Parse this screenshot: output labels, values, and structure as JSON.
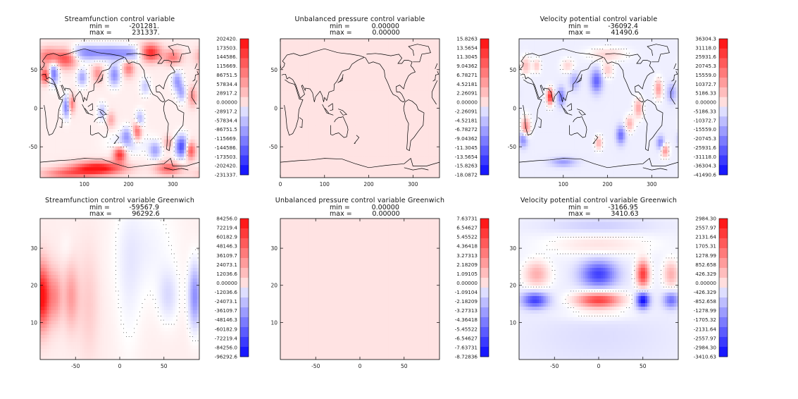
{
  "chart_data": [
    {
      "type": "heatmap",
      "title": "Streamfunction control variable",
      "stats": {
        "min_label": "min =",
        "min_value": "-201281.",
        "max_label": "max =",
        "max_value": "231337."
      },
      "x_ticks": [
        "100",
        "200",
        "300"
      ],
      "x_tick_values": [
        100,
        200,
        300
      ],
      "y_ticks": [
        "50",
        "0",
        "-50"
      ],
      "y_tick_values": [
        50,
        0,
        -50
      ],
      "xlim": [
        0,
        360
      ],
      "ylim": [
        -90,
        90
      ],
      "map": "world",
      "colorbar_labels": [
        "202420.",
        "173503.",
        "144586.",
        "115669.",
        "86751.5",
        "57834.4",
        "28917.2",
        "0.00000",
        "-28917.2",
        "-57834.4",
        "-86751.5",
        "-115669.",
        "-144586.",
        "-173503.",
        "-202420.",
        "-231337."
      ],
      "colorbar_top": 202420,
      "colorbar_min": -231337,
      "blobs": [
        {
          "x": 20,
          "y": 67,
          "a": 0.55,
          "sx": 18,
          "sy": 8
        },
        {
          "x": 60,
          "y": 65,
          "a": 0.7,
          "sx": 16,
          "sy": 9
        },
        {
          "x": 105,
          "y": 72,
          "a": -0.55,
          "sx": 30,
          "sy": 7
        },
        {
          "x": 165,
          "y": 72,
          "a": -0.45,
          "sx": 25,
          "sy": 7
        },
        {
          "x": 205,
          "y": 70,
          "a": -0.4,
          "sx": 18,
          "sy": 7
        },
        {
          "x": 250,
          "y": 72,
          "a": 0.85,
          "sx": 16,
          "sy": 8
        },
        {
          "x": 300,
          "y": 66,
          "a": 0.5,
          "sx": 14,
          "sy": 7
        },
        {
          "x": 12,
          "y": 42,
          "a": 0.8,
          "sx": 8,
          "sy": 7
        },
        {
          "x": 30,
          "y": 45,
          "a": -0.7,
          "sx": 8,
          "sy": 10
        },
        {
          "x": 95,
          "y": 40,
          "a": -0.45,
          "sx": 8,
          "sy": 8
        },
        {
          "x": 130,
          "y": 45,
          "a": 0.4,
          "sx": 8,
          "sy": 8
        },
        {
          "x": 168,
          "y": 43,
          "a": -0.55,
          "sx": 9,
          "sy": 10
        },
        {
          "x": 200,
          "y": 52,
          "a": 0.5,
          "sx": 9,
          "sy": 8
        },
        {
          "x": 238,
          "y": 28,
          "a": -0.3,
          "sx": 8,
          "sy": 8
        },
        {
          "x": 310,
          "y": 35,
          "a": -0.5,
          "sx": 8,
          "sy": 9
        },
        {
          "x": 320,
          "y": 20,
          "a": -0.4,
          "sx": 7,
          "sy": 8
        },
        {
          "x": 345,
          "y": 15,
          "a": 0.4,
          "sx": 7,
          "sy": 9
        },
        {
          "x": 60,
          "y": 2,
          "a": -0.7,
          "sx": 6,
          "sy": 10
        },
        {
          "x": 70,
          "y": 5,
          "a": 0.6,
          "sx": 6,
          "sy": 8
        },
        {
          "x": 140,
          "y": -5,
          "a": -0.35,
          "sx": 7,
          "sy": 8
        },
        {
          "x": 160,
          "y": -15,
          "a": 0.3,
          "sx": 7,
          "sy": 7
        },
        {
          "x": 220,
          "y": -30,
          "a": 0.65,
          "sx": 7,
          "sy": 9
        },
        {
          "x": 225,
          "y": -15,
          "a": -0.45,
          "sx": 7,
          "sy": 8
        },
        {
          "x": 195,
          "y": -35,
          "a": -0.35,
          "sx": 8,
          "sy": 8
        },
        {
          "x": 180,
          "y": -60,
          "a": 0.85,
          "sx": 10,
          "sy": 7
        },
        {
          "x": 130,
          "y": -78,
          "a": 1.0,
          "sx": 40,
          "sy": 6
        },
        {
          "x": 60,
          "y": -85,
          "a": 0.5,
          "sx": 40,
          "sy": 5
        },
        {
          "x": 290,
          "y": -78,
          "a": 0.6,
          "sx": 20,
          "sy": 6
        },
        {
          "x": 260,
          "y": -55,
          "a": -0.45,
          "sx": 10,
          "sy": 8
        },
        {
          "x": 320,
          "y": -50,
          "a": -0.85,
          "sx": 10,
          "sy": 10
        },
        {
          "x": 340,
          "y": -55,
          "a": 0.7,
          "sx": 8,
          "sy": 8
        },
        {
          "x": 290,
          "y": -45,
          "a": 0.3,
          "sx": 8,
          "sy": 6
        },
        {
          "x": 200,
          "y": -45,
          "a": -0.25,
          "sx": 30,
          "sy": 10
        }
      ],
      "base": 0.07
    },
    {
      "type": "heatmap",
      "title": "Unbalanced pressure control variable",
      "stats": {
        "min_label": "min =",
        "min_value": "0.00000",
        "max_label": "max =",
        "max_value": "0.00000"
      },
      "x_ticks": [
        "0",
        "100",
        "200",
        "300"
      ],
      "x_tick_values": [
        0,
        100,
        200,
        300
      ],
      "y_ticks": [
        "50",
        "0",
        "-50"
      ],
      "y_tick_values": [
        50,
        0,
        -50
      ],
      "xlim": [
        0,
        360
      ],
      "ylim": [
        -90,
        90
      ],
      "map": "world",
      "colorbar_labels": [
        "15.8263",
        "13.5654",
        "11.3045",
        "9.04362",
        "6.78271",
        "4.52181",
        "2.26091",
        "0.00000",
        "-2.26091",
        "-4.52181",
        "-6.78272",
        "-9.04362",
        "-11.3045",
        "-13.5654",
        "-15.8263",
        "-18.0872"
      ],
      "colorbar_top": 15.8263,
      "colorbar_min": -18.0872,
      "blobs": [],
      "base": 0.12
    },
    {
      "type": "heatmap",
      "title": "Velocity potential control variable",
      "stats": {
        "min_label": "min =",
        "min_value": "-36092.4",
        "max_label": "max =",
        "max_value": "41490.6"
      },
      "x_ticks": [
        "100",
        "200",
        "300"
      ],
      "x_tick_values": [
        100,
        200,
        300
      ],
      "y_ticks": [
        "50",
        "0",
        "-50"
      ],
      "y_tick_values": [
        50,
        0,
        -50
      ],
      "xlim": [
        0,
        360
      ],
      "ylim": [
        -90,
        90
      ],
      "map": "world",
      "colorbar_labels": [
        "36304.3",
        "31118.0",
        "25931.6",
        "20745.3",
        "15559.0",
        "10372.7",
        "5186.33",
        "0.00000",
        "-5186.33",
        "-10372.7",
        "-15559.0",
        "-20745.3",
        "-25931.6",
        "-31118.0",
        "-36304.3",
        "-41490.6"
      ],
      "colorbar_top": 36304.3,
      "colorbar_min": -41490.6,
      "blobs": [
        {
          "x": 15,
          "y": 55,
          "a": 0.35,
          "sx": 8,
          "sy": 8
        },
        {
          "x": 40,
          "y": 55,
          "a": 0.3,
          "sx": 6,
          "sy": 6
        },
        {
          "x": 110,
          "y": 55,
          "a": 0.25,
          "sx": 10,
          "sy": 6
        },
        {
          "x": 175,
          "y": 35,
          "a": -0.6,
          "sx": 9,
          "sy": 10
        },
        {
          "x": 200,
          "y": 50,
          "a": 0.3,
          "sx": 9,
          "sy": 7
        },
        {
          "x": 125,
          "y": 35,
          "a": -0.3,
          "sx": 8,
          "sy": 8
        },
        {
          "x": 70,
          "y": 15,
          "a": 1.0,
          "sx": 5,
          "sy": 7
        },
        {
          "x": 95,
          "y": 15,
          "a": -0.5,
          "sx": 6,
          "sy": 8
        },
        {
          "x": 15,
          "y": -25,
          "a": 0.6,
          "sx": 7,
          "sy": 9
        },
        {
          "x": 10,
          "y": -40,
          "a": -0.5,
          "sx": 7,
          "sy": 7
        },
        {
          "x": 230,
          "y": -35,
          "a": -0.55,
          "sx": 7,
          "sy": 8
        },
        {
          "x": 250,
          "y": -20,
          "a": 0.4,
          "sx": 7,
          "sy": 7
        },
        {
          "x": 270,
          "y": 0,
          "a": 0.45,
          "sx": 7,
          "sy": 9
        },
        {
          "x": 315,
          "y": 25,
          "a": 0.5,
          "sx": 6,
          "sy": 9
        },
        {
          "x": 345,
          "y": 20,
          "a": -0.35,
          "sx": 7,
          "sy": 8
        },
        {
          "x": 330,
          "y": -55,
          "a": 0.55,
          "sx": 6,
          "sy": 6
        },
        {
          "x": 320,
          "y": -45,
          "a": -0.45,
          "sx": 6,
          "sy": 6
        },
        {
          "x": 180,
          "y": -45,
          "a": 0.4,
          "sx": 6,
          "sy": 6
        },
        {
          "x": 100,
          "y": -70,
          "a": -0.35,
          "sx": 20,
          "sy": 4
        },
        {
          "x": 200,
          "y": 70,
          "a": 0.25,
          "sx": 30,
          "sy": 6
        }
      ],
      "base": -0.07
    },
    {
      "type": "heatmap",
      "title": "Streamfunction control variable Greenwich",
      "stats": {
        "min_label": "min =",
        "min_value": "-59567.9",
        "max_label": "max =",
        "max_value": "96292.6"
      },
      "x_ticks": [
        "-50",
        "0",
        "50"
      ],
      "x_tick_values": [
        -50,
        0,
        50
      ],
      "y_ticks": [
        "30",
        "20",
        "10"
      ],
      "y_tick_values": [
        30,
        20,
        10
      ],
      "xlim": [
        -90,
        90
      ],
      "ylim": [
        0,
        38
      ],
      "map": "none",
      "colorbar_labels": [
        "84256.0",
        "72219.4",
        "60182.9",
        "48146.3",
        "36109.7",
        "24073.1",
        "12036.6",
        "0.00000",
        "-12036.6",
        "-24073.1",
        "-36109.7",
        "-48146.3",
        "-60182.9",
        "-72219.4",
        "-84256.0",
        "-96292.6"
      ],
      "colorbar_top": 84256.0,
      "colorbar_min": -96292.6,
      "blobs": [
        {
          "x": -88,
          "y": 17,
          "a": 1.0,
          "sx": 7,
          "sy": 6
        },
        {
          "x": -72,
          "y": 17,
          "a": 0.35,
          "sx": 5,
          "sy": 5
        },
        {
          "x": -55,
          "y": 17,
          "a": 0.35,
          "sx": 6,
          "sy": 6
        },
        {
          "x": -35,
          "y": 15,
          "a": 0.15,
          "sx": 8,
          "sy": 10
        },
        {
          "x": 85,
          "y": 17,
          "a": -0.55,
          "sx": 5,
          "sy": 6
        },
        {
          "x": 55,
          "y": 17,
          "a": -0.2,
          "sx": 8,
          "sy": 5
        },
        {
          "x": 30,
          "y": 30,
          "a": -0.12,
          "sx": 25,
          "sy": 10
        },
        {
          "x": 10,
          "y": 20,
          "a": -0.1,
          "sx": 10,
          "sy": 15
        },
        {
          "x": -60,
          "y": 30,
          "a": -0.05,
          "sx": 5,
          "sy": 3
        }
      ],
      "base": 0.07
    },
    {
      "type": "heatmap",
      "title": "Unbalanced pressure control variable Greenwich",
      "stats": {
        "min_label": "min =",
        "min_value": "0.00000",
        "max_label": "max =",
        "max_value": "0.00000"
      },
      "x_ticks": [
        "-50",
        "0",
        "50"
      ],
      "x_tick_values": [
        -50,
        0,
        50
      ],
      "y_ticks": [
        "30",
        "20",
        "10"
      ],
      "y_tick_values": [
        30,
        20,
        10
      ],
      "xlim": [
        -90,
        90
      ],
      "ylim": [
        0,
        38
      ],
      "map": "none",
      "colorbar_labels": [
        "7.63731",
        "6.54627",
        "5.45522",
        "4.36418",
        "3.27313",
        "2.18209",
        "1.09105",
        "0.00000",
        "-1.09104",
        "-2.18209",
        "-3.27313",
        "-4.36418",
        "-5.45522",
        "-6.54627",
        "-7.63731",
        "-8.72836"
      ],
      "colorbar_top": 7.63731,
      "colorbar_min": -8.72836,
      "blobs": [],
      "base": 0.12
    },
    {
      "type": "heatmap",
      "title": "Velocity potential control variable Greenwich",
      "stats": {
        "min_label": "min =",
        "min_value": "-3166.95",
        "max_label": "max =",
        "max_value": "3410.63"
      },
      "x_ticks": [
        "-50",
        "0",
        "50"
      ],
      "x_tick_values": [
        -50,
        0,
        50
      ],
      "y_ticks": [
        "30",
        "20",
        "10"
      ],
      "y_tick_values": [
        30,
        20,
        10
      ],
      "xlim": [
        -90,
        90
      ],
      "ylim": [
        0,
        38
      ],
      "map": "none",
      "colorbar_labels": [
        "2984.30",
        "2557.97",
        "2131.64",
        "1705.31",
        "1278.99",
        "852.658",
        "426.329",
        "0.00000",
        "-426.329",
        "-852.658",
        "-1278.99",
        "-1705.32",
        "-2131.64",
        "-2557.97",
        "-2984.30",
        "-3410.63"
      ],
      "colorbar_top": 2984.3,
      "colorbar_min": -3410.63,
      "blobs": [
        {
          "x": 0,
          "y": 23,
          "a": -0.75,
          "sx": 14,
          "sy": 2.5
        },
        {
          "x": 50,
          "y": 23,
          "a": 0.9,
          "sx": 5,
          "sy": 2.5
        },
        {
          "x": -70,
          "y": 23,
          "a": 0.4,
          "sx": 10,
          "sy": 2.5
        },
        {
          "x": 82,
          "y": 23,
          "a": 0.4,
          "sx": 6,
          "sy": 2.5
        },
        {
          "x": 0,
          "y": 16,
          "a": 0.9,
          "sx": 18,
          "sy": 1.5
        },
        {
          "x": 50,
          "y": 16,
          "a": -1.0,
          "sx": 5,
          "sy": 1.5
        },
        {
          "x": -72,
          "y": 16,
          "a": -0.75,
          "sx": 10,
          "sy": 1.5
        },
        {
          "x": 82,
          "y": 16,
          "a": -0.55,
          "sx": 6,
          "sy": 1.5
        },
        {
          "x": 0,
          "y": 31,
          "a": 0.18,
          "sx": 40,
          "sy": 2
        },
        {
          "x": 0,
          "y": 36,
          "a": -0.15,
          "sx": 40,
          "sy": 1.5
        },
        {
          "x": 0,
          "y": 6,
          "a": -0.08,
          "sx": 60,
          "sy": 6
        },
        {
          "x": 0,
          "y": 12,
          "a": 0.12,
          "sx": 30,
          "sy": 1.2
        }
      ],
      "base": -0.06
    }
  ],
  "colors": {
    "positive": "#ff0000",
    "negative": "#0000ff",
    "background": "#ffffff",
    "axis": "#000000"
  }
}
